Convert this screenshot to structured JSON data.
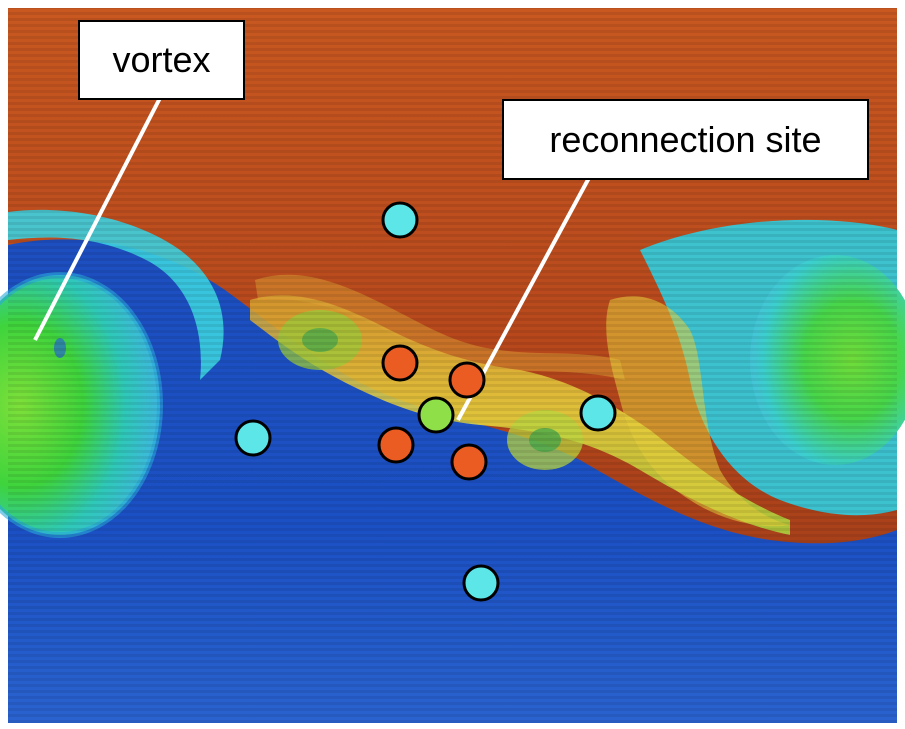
{
  "labels": {
    "vortex": "vortex",
    "reconnection_site": "reconnection site"
  },
  "colors": {
    "upper_plasma": "#c4521c",
    "lower_plasma": "#1f58c6",
    "vortex_core": "#38d13a",
    "interface": "#e7d83a",
    "marker_cyan": "#5ce6e8",
    "marker_orange": "#ea5c22",
    "marker_green": "#8fe048",
    "callout_line": "#ffffff"
  },
  "markers": [
    {
      "type": "cyan",
      "label": ""
    },
    {
      "type": "cyan",
      "label": ""
    },
    {
      "type": "cyan",
      "label": ""
    },
    {
      "type": "cyan",
      "label": ""
    },
    {
      "type": "orange",
      "label": ""
    },
    {
      "type": "orange",
      "label": ""
    },
    {
      "type": "orange",
      "label": ""
    },
    {
      "type": "orange",
      "label": ""
    },
    {
      "type": "green",
      "label": ""
    }
  ]
}
